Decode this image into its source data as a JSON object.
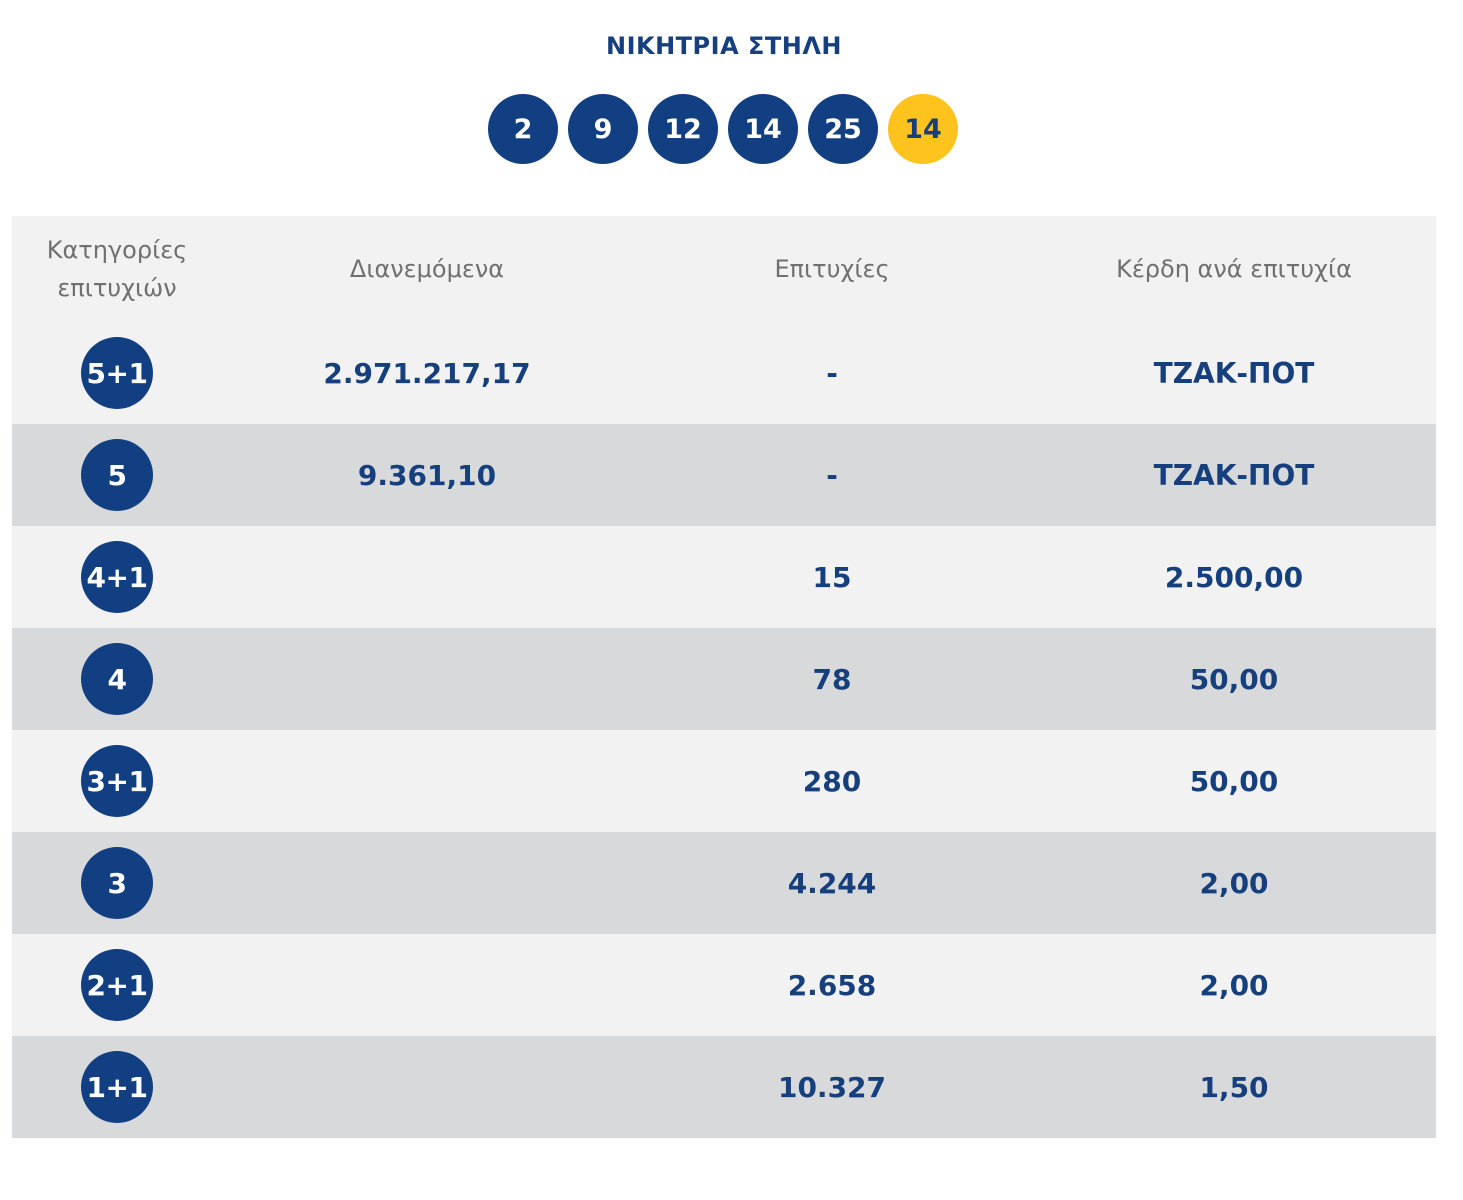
{
  "winning_column": {
    "title": "ΝΙΚΗΤΡΙΑ ΣΤΗΛΗ",
    "numbers": [
      "2",
      "9",
      "12",
      "14",
      "25"
    ],
    "bonus": "14",
    "colors": {
      "ball": "#123f82",
      "bonus_ball": "#ffc31e",
      "text": "#163f7d"
    }
  },
  "table": {
    "headers": {
      "category_line1": "Κατηγορίες",
      "category_line2": "επιτυχιών",
      "distributed": "Διανεμόμενα",
      "winners": "Επιτυχίες",
      "prize": "Κέρδη ανά επιτυχία"
    },
    "rows": [
      {
        "category": "5+1",
        "distributed": "2.971.217,17",
        "winners": "-",
        "prize": "ΤΖΑΚ-ΠΟΤ"
      },
      {
        "category": "5",
        "distributed": "9.361,10",
        "winners": "-",
        "prize": "ΤΖΑΚ-ΠΟΤ"
      },
      {
        "category": "4+1",
        "distributed": "",
        "winners": "15",
        "prize": "2.500,00"
      },
      {
        "category": "4",
        "distributed": "",
        "winners": "78",
        "prize": "50,00"
      },
      {
        "category": "3+1",
        "distributed": "",
        "winners": "280",
        "prize": "50,00"
      },
      {
        "category": "3",
        "distributed": "",
        "winners": "4.244",
        "prize": "2,00"
      },
      {
        "category": "2+1",
        "distributed": "",
        "winners": "2.658",
        "prize": "2,00"
      },
      {
        "category": "1+1",
        "distributed": "",
        "winners": "10.327",
        "prize": "1,50"
      }
    ]
  }
}
